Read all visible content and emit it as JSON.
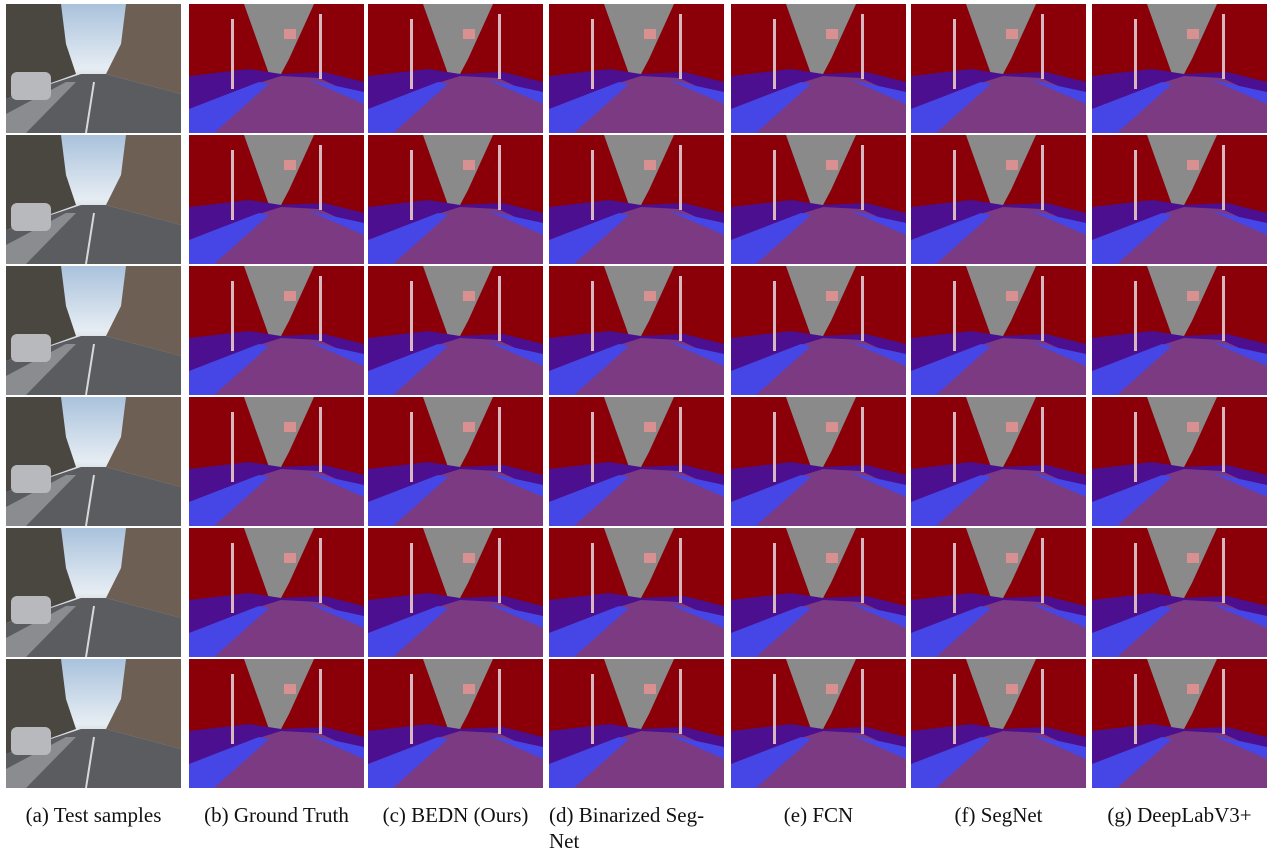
{
  "captions": [
    [
      "(a) Test samples"
    ],
    [
      "(b) Ground Truth"
    ],
    [
      "(c) BEDN (Ours)"
    ],
    [
      "(d) Binarized Seg-",
      "Net"
    ],
    [
      "(e) FCN"
    ],
    [
      "(f) SegNet"
    ],
    [
      "(g) DeepLabV3+"
    ]
  ]
}
